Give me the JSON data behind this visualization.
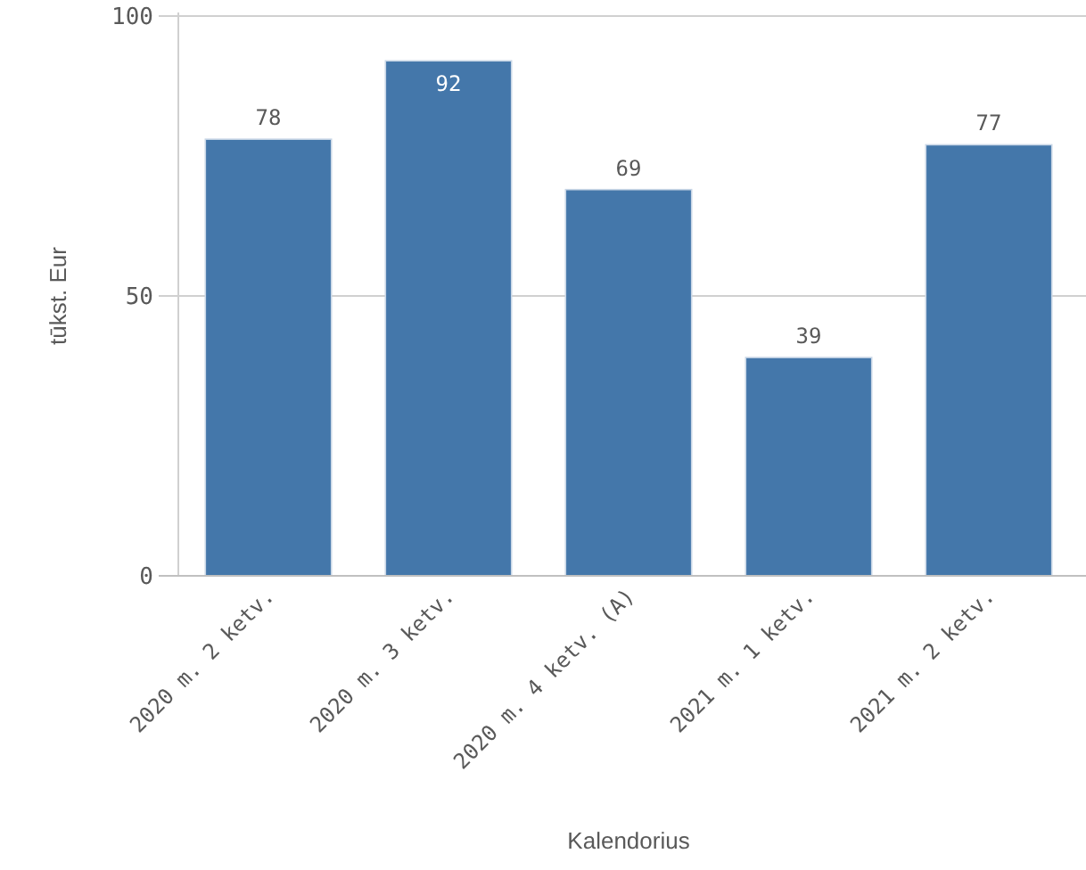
{
  "chart_data": {
    "type": "bar",
    "xlabel": "Kalendorius",
    "ylabel": "tūkst. Eur",
    "categories": [
      "2020 m. 2 ketv.",
      "2020 m. 3 ketv.",
      "2020 m. 4 ketv. (A)",
      "2021 m. 1 ketv.",
      "2021 m. 2 ketv."
    ],
    "values": [
      78,
      92,
      69,
      39,
      77
    ],
    "color": "#4477aa",
    "ylim": [
      0,
      100
    ],
    "yticks": [
      0,
      50,
      100
    ],
    "grid": "y",
    "data_labels": true
  }
}
